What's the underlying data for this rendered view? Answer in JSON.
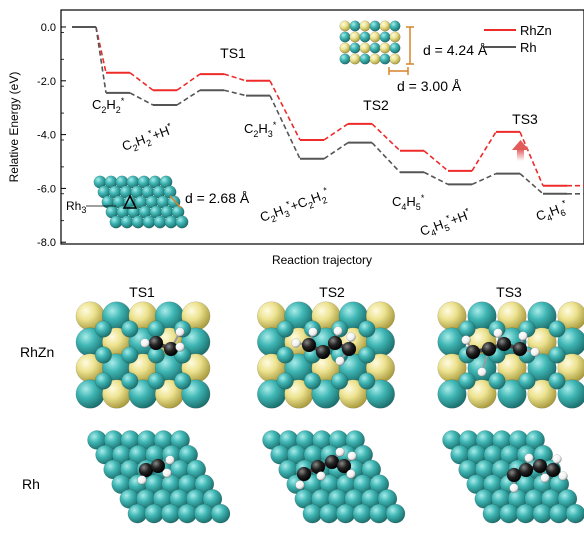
{
  "chart_data": {
    "type": "line",
    "title": "",
    "xlabel": "Reaction trajectory",
    "ylabel": "Relative Energy (eV)",
    "ylim": [
      -8.3,
      0.8
    ],
    "yticks": [
      "0.0",
      "-2.0",
      "-4.0",
      "-6.0",
      "-8.0"
    ],
    "legend_position": "top-right",
    "x": [
      0,
      1,
      2,
      3,
      4,
      5,
      6,
      7,
      8,
      9,
      10,
      11
    ],
    "series": [
      {
        "name": "RhZn",
        "color": "#ee2b2b",
        "values": [
          0.0,
          -1.7,
          -2.35,
          -1.75,
          -2.0,
          -4.2,
          -3.6,
          -4.6,
          -5.35,
          -3.9,
          -5.9,
          -5.9
        ]
      },
      {
        "name": "Rh",
        "color": "#555555",
        "values": [
          0.0,
          -2.45,
          -2.9,
          -2.35,
          -2.55,
          -4.9,
          -4.3,
          -5.4,
          -5.85,
          -5.45,
          -6.2,
          -6.2
        ]
      }
    ],
    "annotations": {
      "states": [
        {
          "id": "c2h2",
          "label": "C2H2*"
        },
        {
          "id": "c2h2h",
          "label": "C2H2*+H*"
        },
        {
          "id": "c2h3",
          "label": "C2H3*"
        },
        {
          "id": "c2h3c2h2",
          "label": "C2H3*+C2H2*"
        },
        {
          "id": "c4h5",
          "label": "C4H5*"
        },
        {
          "id": "c4h5h",
          "label": "C4H5*+H*"
        },
        {
          "id": "c4h6",
          "label": "C4H6*"
        }
      ],
      "transition_states": [
        "TS1",
        "TS2",
        "TS3"
      ],
      "rhzn_distance_long": "d = 4.24 Å",
      "rhzn_distance_short": "d = 3.00 Å",
      "rh_distance": "d = 2.68 Å",
      "rh_site": "Rh3"
    }
  },
  "structure_panels": {
    "column_labels": [
      "TS1",
      "TS2",
      "TS3"
    ],
    "row_labels": [
      "RhZn",
      "Rh"
    ]
  },
  "colors": {
    "rhzn_line": "#ee2b2b",
    "rh_line": "#555555",
    "rh_atom": "#3fb6b4",
    "zn_atom": "#ece28f",
    "carbon_atom": "#222222",
    "hydrogen_atom": "#ffffff",
    "arrow": "#f28a8a",
    "distance_marker": "#d9822b"
  }
}
